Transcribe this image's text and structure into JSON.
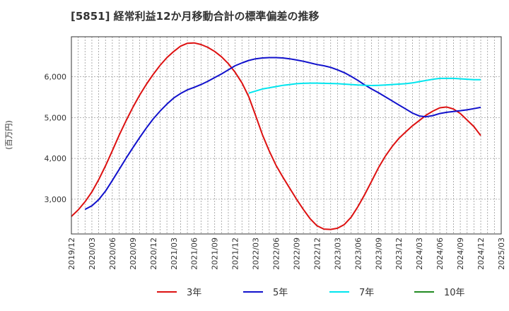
{
  "title": "[5851]  経常利益12か月移動合計の標準偏差の推移",
  "chart_data": {
    "type": "line",
    "title": "[5851]  経常利益12か月移動合計の標準偏差の推移",
    "ylabel": "(百万円)",
    "xlabel": "",
    "ylim": [
      2150,
      6980
    ],
    "yticks": [
      3000,
      4000,
      5000,
      6000
    ],
    "ytick_labels": [
      "3,000",
      "4,000",
      "5,000",
      "6,000"
    ],
    "x_start": "2019/12",
    "x_tick_labels": [
      "2019/12",
      "2020/03",
      "2020/06",
      "2020/09",
      "2020/12",
      "2021/03",
      "2021/06",
      "2021/09",
      "2021/12",
      "2022/03",
      "2022/06",
      "2022/09",
      "2022/12",
      "2023/03",
      "2023/06",
      "2023/09",
      "2023/12",
      "2024/03",
      "2024/06",
      "2024/09",
      "2024/12",
      "2025/03"
    ],
    "grid": true,
    "legend_position": "bottom",
    "series": [
      {
        "name": "3年",
        "color": "#dd1111",
        "points": [
          [
            "2019/12",
            2580
          ],
          [
            "2020/01",
            2740
          ],
          [
            "2020/02",
            2940
          ],
          [
            "2020/03",
            3180
          ],
          [
            "2020/04",
            3480
          ],
          [
            "2020/05",
            3820
          ],
          [
            "2020/06",
            4190
          ],
          [
            "2020/07",
            4570
          ],
          [
            "2020/08",
            4920
          ],
          [
            "2020/09",
            5250
          ],
          [
            "2020/10",
            5550
          ],
          [
            "2020/11",
            5820
          ],
          [
            "2020/12",
            6060
          ],
          [
            "2021/01",
            6280
          ],
          [
            "2021/02",
            6470
          ],
          [
            "2021/03",
            6620
          ],
          [
            "2021/04",
            6750
          ],
          [
            "2021/05",
            6820
          ],
          [
            "2021/06",
            6830
          ],
          [
            "2021/07",
            6790
          ],
          [
            "2021/08",
            6720
          ],
          [
            "2021/09",
            6620
          ],
          [
            "2021/10",
            6490
          ],
          [
            "2021/11",
            6320
          ],
          [
            "2021/12",
            6110
          ],
          [
            "2022/01",
            5850
          ],
          [
            "2022/02",
            5510
          ],
          [
            "2022/03",
            5050
          ],
          [
            "2022/04",
            4580
          ],
          [
            "2022/05",
            4180
          ],
          [
            "2022/06",
            3830
          ],
          [
            "2022/07",
            3540
          ],
          [
            "2022/08",
            3270
          ],
          [
            "2022/09",
            3000
          ],
          [
            "2022/10",
            2750
          ],
          [
            "2022/11",
            2520
          ],
          [
            "2022/12",
            2350
          ],
          [
            "2023/01",
            2270
          ],
          [
            "2023/02",
            2260
          ],
          [
            "2023/03",
            2290
          ],
          [
            "2023/04",
            2380
          ],
          [
            "2023/05",
            2560
          ],
          [
            "2023/06",
            2820
          ],
          [
            "2023/07",
            3120
          ],
          [
            "2023/08",
            3440
          ],
          [
            "2023/09",
            3770
          ],
          [
            "2023/10",
            4050
          ],
          [
            "2023/11",
            4290
          ],
          [
            "2023/12",
            4490
          ],
          [
            "2024/01",
            4650
          ],
          [
            "2024/02",
            4800
          ],
          [
            "2024/03",
            4930
          ],
          [
            "2024/04",
            5060
          ],
          [
            "2024/05",
            5160
          ],
          [
            "2024/06",
            5240
          ],
          [
            "2024/07",
            5260
          ],
          [
            "2024/08",
            5210
          ],
          [
            "2024/09",
            5100
          ],
          [
            "2024/10",
            4940
          ],
          [
            "2024/11",
            4780
          ],
          [
            "2024/12",
            4560
          ]
        ]
      },
      {
        "name": "5年",
        "color": "#1111cc",
        "points": [
          [
            "2020/02",
            2750
          ],
          [
            "2020/03",
            2840
          ],
          [
            "2020/04",
            2990
          ],
          [
            "2020/05",
            3200
          ],
          [
            "2020/06",
            3460
          ],
          [
            "2020/07",
            3730
          ],
          [
            "2020/08",
            4000
          ],
          [
            "2020/09",
            4260
          ],
          [
            "2020/10",
            4510
          ],
          [
            "2020/11",
            4750
          ],
          [
            "2020/12",
            4970
          ],
          [
            "2021/01",
            5160
          ],
          [
            "2021/02",
            5330
          ],
          [
            "2021/03",
            5480
          ],
          [
            "2021/04",
            5590
          ],
          [
            "2021/05",
            5680
          ],
          [
            "2021/06",
            5740
          ],
          [
            "2021/07",
            5810
          ],
          [
            "2021/08",
            5890
          ],
          [
            "2021/09",
            5980
          ],
          [
            "2021/10",
            6070
          ],
          [
            "2021/11",
            6170
          ],
          [
            "2021/12",
            6270
          ],
          [
            "2022/01",
            6340
          ],
          [
            "2022/02",
            6400
          ],
          [
            "2022/03",
            6440
          ],
          [
            "2022/04",
            6460
          ],
          [
            "2022/05",
            6470
          ],
          [
            "2022/06",
            6470
          ],
          [
            "2022/07",
            6460
          ],
          [
            "2022/08",
            6440
          ],
          [
            "2022/09",
            6410
          ],
          [
            "2022/10",
            6380
          ],
          [
            "2022/11",
            6340
          ],
          [
            "2022/12",
            6300
          ],
          [
            "2023/01",
            6270
          ],
          [
            "2023/02",
            6230
          ],
          [
            "2023/03",
            6170
          ],
          [
            "2023/04",
            6100
          ],
          [
            "2023/05",
            6010
          ],
          [
            "2023/06",
            5910
          ],
          [
            "2023/07",
            5800
          ],
          [
            "2023/08",
            5700
          ],
          [
            "2023/09",
            5610
          ],
          [
            "2023/10",
            5510
          ],
          [
            "2023/11",
            5410
          ],
          [
            "2023/12",
            5310
          ],
          [
            "2024/01",
            5210
          ],
          [
            "2024/02",
            5110
          ],
          [
            "2024/03",
            5040
          ],
          [
            "2024/04",
            5020
          ],
          [
            "2024/05",
            5050
          ],
          [
            "2024/06",
            5100
          ],
          [
            "2024/07",
            5130
          ],
          [
            "2024/08",
            5150
          ],
          [
            "2024/09",
            5170
          ],
          [
            "2024/10",
            5190
          ],
          [
            "2024/11",
            5220
          ],
          [
            "2024/12",
            5250
          ]
        ]
      },
      {
        "name": "7年",
        "color": "#00e5ee",
        "points": [
          [
            "2022/02",
            5600
          ],
          [
            "2022/03",
            5650
          ],
          [
            "2022/04",
            5700
          ],
          [
            "2022/05",
            5730
          ],
          [
            "2022/06",
            5760
          ],
          [
            "2022/07",
            5790
          ],
          [
            "2022/08",
            5810
          ],
          [
            "2022/09",
            5830
          ],
          [
            "2022/10",
            5840
          ],
          [
            "2022/11",
            5845
          ],
          [
            "2022/12",
            5845
          ],
          [
            "2023/01",
            5840
          ],
          [
            "2023/02",
            5835
          ],
          [
            "2023/03",
            5830
          ],
          [
            "2023/04",
            5820
          ],
          [
            "2023/05",
            5810
          ],
          [
            "2023/06",
            5800
          ],
          [
            "2023/07",
            5790
          ],
          [
            "2023/08",
            5785
          ],
          [
            "2023/09",
            5790
          ],
          [
            "2023/10",
            5800
          ],
          [
            "2023/11",
            5810
          ],
          [
            "2023/12",
            5820
          ],
          [
            "2024/01",
            5830
          ],
          [
            "2024/02",
            5850
          ],
          [
            "2024/03",
            5880
          ],
          [
            "2024/04",
            5910
          ],
          [
            "2024/05",
            5940
          ],
          [
            "2024/06",
            5960
          ],
          [
            "2024/07",
            5960
          ],
          [
            "2024/08",
            5960
          ],
          [
            "2024/09",
            5950
          ],
          [
            "2024/10",
            5940
          ],
          [
            "2024/11",
            5930
          ],
          [
            "2024/12",
            5930
          ]
        ]
      },
      {
        "name": "10年",
        "color": "#228b22",
        "points": []
      }
    ]
  }
}
